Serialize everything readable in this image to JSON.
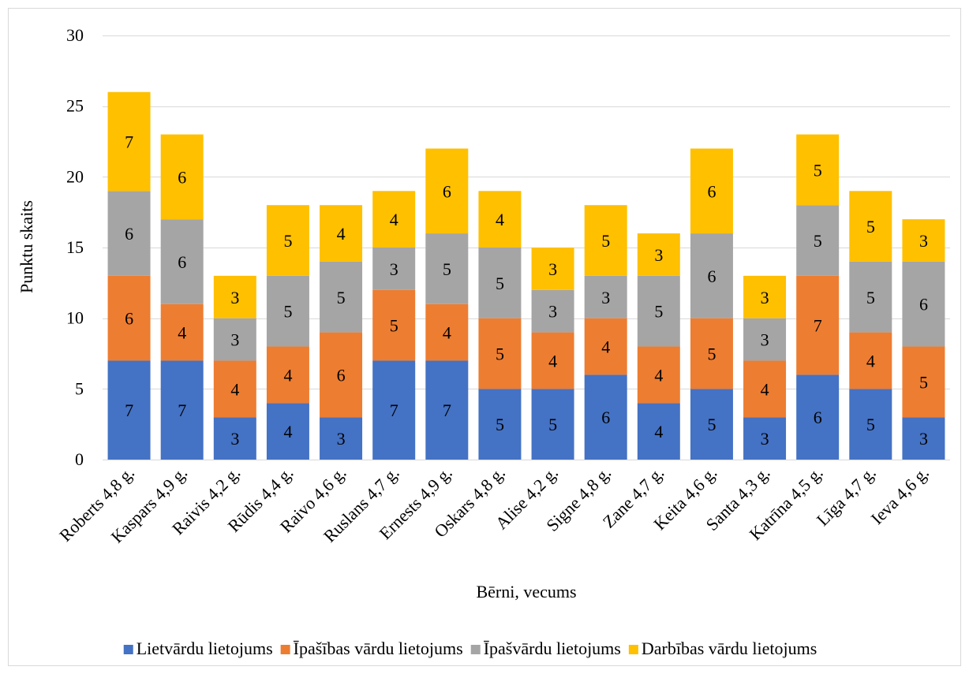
{
  "chart_data": {
    "type": "bar",
    "stacked": true,
    "title": "",
    "xlabel": "Bērni, vecums",
    "ylabel": "Punktu skaits",
    "ylim": [
      0,
      30
    ],
    "yticks": [
      0,
      5,
      10,
      15,
      20,
      25,
      30
    ],
    "grid": true,
    "legend_position": "bottom",
    "categories": [
      "Roberts 4,8 g.",
      "Kaspars 4,9 g.",
      "Raivis 4,2 g.",
      "Rūdis 4,4 g.",
      "Raivo 4,6 g.",
      "Ruslans 4,7 g.",
      "Ernests 4,9 g.",
      "Oskars 4,8 g.",
      "Alise  4,2 g.",
      "Signe 4,8 g.",
      "Zane 4,7 g.",
      "Keita 4,6 g.",
      "Santa 4,3 g.",
      "Katrīna 4,5 g.",
      "Līga 4,7 g.",
      "Ieva 4,6 g."
    ],
    "series": [
      {
        "name": "Lietvārdu lietojums",
        "color": "#4472c4",
        "values": [
          7,
          7,
          3,
          4,
          3,
          7,
          7,
          5,
          5,
          6,
          4,
          5,
          3,
          6,
          5,
          3
        ]
      },
      {
        "name": "Īpašības vārdu lietojums",
        "color": "#ed7d31",
        "values": [
          6,
          4,
          4,
          4,
          6,
          5,
          4,
          5,
          4,
          4,
          4,
          5,
          4,
          7,
          4,
          5
        ]
      },
      {
        "name": "Īpašvārdu lietojums",
        "color": "#a5a5a5",
        "values": [
          6,
          6,
          3,
          5,
          5,
          3,
          5,
          5,
          3,
          3,
          5,
          6,
          3,
          5,
          5,
          6
        ]
      },
      {
        "name": "Darbības vārdu lietojums",
        "color": "#ffc000",
        "values": [
          7,
          6,
          3,
          5,
          4,
          4,
          6,
          4,
          3,
          5,
          3,
          6,
          3,
          5,
          5,
          3
        ]
      }
    ]
  }
}
